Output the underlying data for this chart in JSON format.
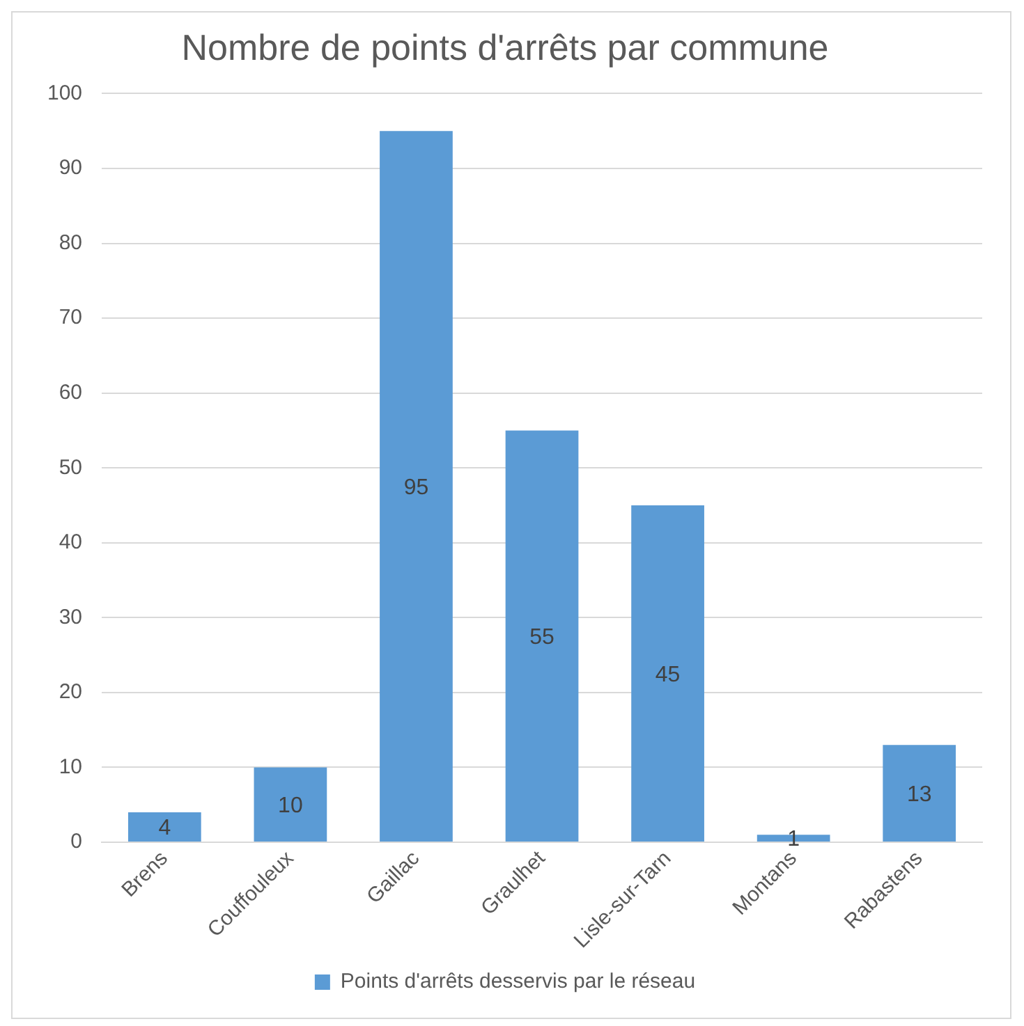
{
  "chart_data": {
    "type": "bar",
    "title": "Nombre de points d'arrêts par commune",
    "categories": [
      "Brens",
      "Couffouleux",
      "Gaillac",
      "Graulhet",
      "Lisle-sur-Tarn",
      "Montans",
      "Rabastens"
    ],
    "series": [
      {
        "name": "Points d'arrêts desservis par le réseau",
        "color": "#5b9bd5",
        "values": [
          4,
          10,
          95,
          55,
          45,
          1,
          13
        ]
      }
    ],
    "ylim": [
      0,
      100
    ],
    "yticks": [
      0,
      10,
      20,
      30,
      40,
      50,
      60,
      70,
      80,
      90,
      100
    ],
    "grid": "y",
    "legend": "bottom",
    "data_labels": true
  }
}
